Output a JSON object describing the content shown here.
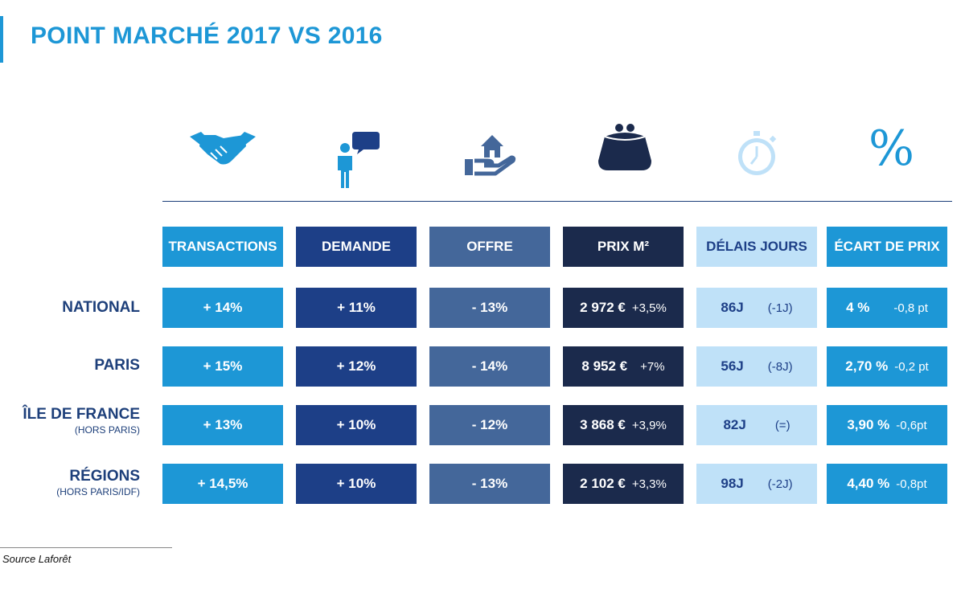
{
  "title": "POINT MARCHÉ 2017 VS 2016",
  "icons": [
    "handshake-icon",
    "person-speech-icon",
    "house-hand-icon",
    "purse-icon",
    "stopwatch-icon",
    "percent-icon"
  ],
  "percent_symbol": "%",
  "chart_data": {
    "type": "table",
    "columns": [
      "TRANSACTIONS",
      "DEMANDE",
      "OFFRE",
      "PRIX M²",
      "DÉLAIS JOURS",
      "ÉCART DE PRIX"
    ],
    "column_colors": [
      "#1d97d6",
      "#1d3f87",
      "#44679a",
      "#1b2a4c",
      "#bfe1f8",
      "#1d97d6"
    ],
    "rows": [
      {
        "label": "NATIONAL",
        "note": "",
        "transactions": "+ 14%",
        "demande": "+ 11%",
        "offre": "- 13%",
        "prix": "2 972 €",
        "prix_var": "+3,5%",
        "delais": "86J",
        "delais_var": "(-1J)",
        "ecart": "4 %",
        "ecart_var": "-0,8 pt"
      },
      {
        "label": "PARIS",
        "note": "",
        "transactions": "+ 15%",
        "demande": "+ 12%",
        "offre": "- 14%",
        "prix": "8 952 €",
        "prix_var": "+7%",
        "delais": "56J",
        "delais_var": "(-8J)",
        "ecart": "2,70 %",
        "ecart_var": "-0,2 pt"
      },
      {
        "label": "ÎLE DE FRANCE",
        "note": "(HORS PARIS)",
        "transactions": "+ 13%",
        "demande": "+ 10%",
        "offre": "- 12%",
        "prix": "3 868 €",
        "prix_var": "+3,9%",
        "delais": "82J",
        "delais_var": "(=)",
        "ecart": "3,90 %",
        "ecart_var": "-0,6pt"
      },
      {
        "label": "RÉGIONS",
        "note": "(HORS PARIS/IDF)",
        "transactions": "+ 14,5%",
        "demande": "+ 10%",
        "offre": "- 13%",
        "prix": "2 102 €",
        "prix_var": "+3,3%",
        "delais": "98J",
        "delais_var": "(-2J)",
        "ecart": "4,40 %",
        "ecart_var": "-0,8pt"
      }
    ]
  },
  "source": "Source Laforêt"
}
